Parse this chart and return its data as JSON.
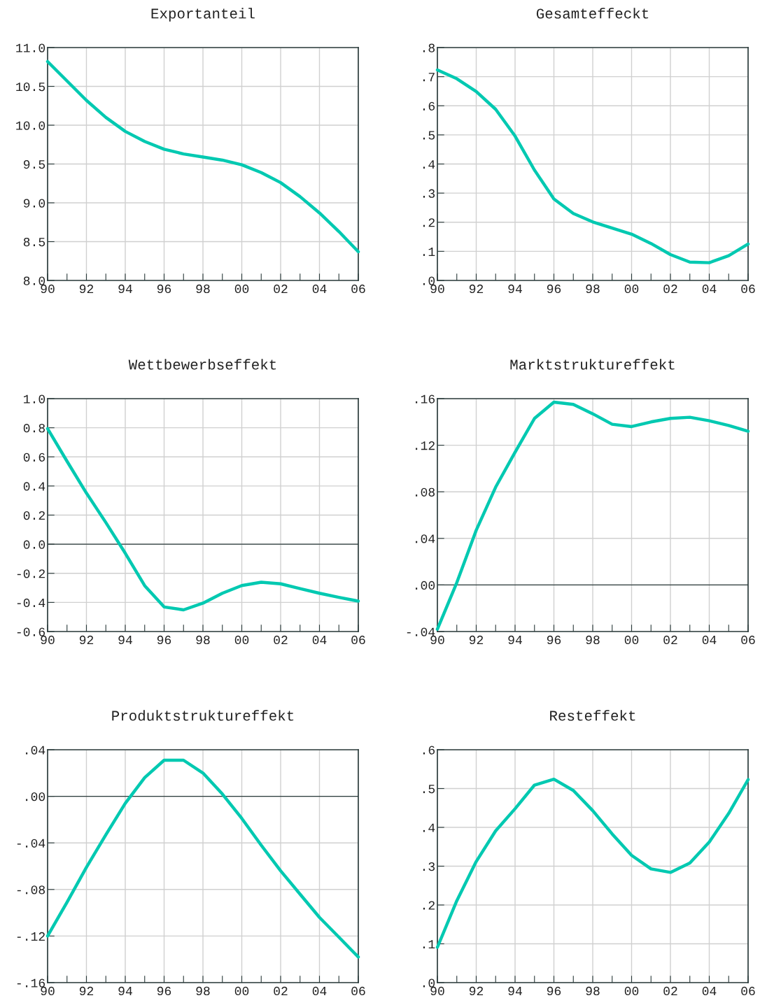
{
  "chart_data": [
    {
      "type": "line",
      "title": "Exportanteil",
      "x": [
        1990,
        1991,
        1992,
        1993,
        1994,
        1995,
        1996,
        1997,
        1998,
        1999,
        2000,
        2001,
        2002,
        2003,
        2004,
        2005,
        2006
      ],
      "series": [
        {
          "color": "#00c9b1",
          "values": [
            10.82,
            10.57,
            10.32,
            10.1,
            9.92,
            9.79,
            9.69,
            9.63,
            9.59,
            9.55,
            9.49,
            9.39,
            9.26,
            9.08,
            8.87,
            8.63,
            8.37
          ]
        }
      ],
      "xlim": [
        1990,
        2006
      ],
      "xticks": [
        {
          "value": 1990,
          "label": "90"
        },
        {
          "value": 1991,
          "label": null
        },
        {
          "value": 1992,
          "label": "92"
        },
        {
          "value": 1993,
          "label": null
        },
        {
          "value": 1994,
          "label": "94"
        },
        {
          "value": 1995,
          "label": null
        },
        {
          "value": 1996,
          "label": "96"
        },
        {
          "value": 1997,
          "label": null
        },
        {
          "value": 1998,
          "label": "98"
        },
        {
          "value": 1999,
          "label": null
        },
        {
          "value": 2000,
          "label": "00"
        },
        {
          "value": 2001,
          "label": null
        },
        {
          "value": 2002,
          "label": "02"
        },
        {
          "value": 2003,
          "label": null
        },
        {
          "value": 2004,
          "label": "04"
        },
        {
          "value": 2005,
          "label": null
        },
        {
          "value": 2006,
          "label": "06"
        }
      ],
      "ylim": [
        8.0,
        11.0
      ],
      "yticks": [
        {
          "value": 8.0,
          "label": "8.0"
        },
        {
          "value": 8.5,
          "label": "8.5"
        },
        {
          "value": 9.0,
          "label": "9.0"
        },
        {
          "value": 9.5,
          "label": "9.5"
        },
        {
          "value": 10.0,
          "label": "10.0"
        },
        {
          "value": 10.5,
          "label": "10.5"
        },
        {
          "value": 11.0,
          "label": "11.0"
        }
      ],
      "grid": true
    },
    {
      "type": "line",
      "title": "Gesamteffeckt",
      "x": [
        1990,
        1991,
        1992,
        1993,
        1994,
        1995,
        1996,
        1997,
        1998,
        1999,
        2000,
        2001,
        2002,
        2003,
        2004,
        2005,
        2006
      ],
      "series": [
        {
          "color": "#00c9b1",
          "values": [
            0.723,
            0.693,
            0.649,
            0.588,
            0.496,
            0.379,
            0.28,
            0.23,
            0.201,
            0.18,
            0.159,
            0.127,
            0.089,
            0.063,
            0.061,
            0.085,
            0.125
          ]
        }
      ],
      "xlim": [
        1990,
        2006
      ],
      "xticks": [
        {
          "value": 1990,
          "label": "90"
        },
        {
          "value": 1991,
          "label": null
        },
        {
          "value": 1992,
          "label": "92"
        },
        {
          "value": 1993,
          "label": null
        },
        {
          "value": 1994,
          "label": "94"
        },
        {
          "value": 1995,
          "label": null
        },
        {
          "value": 1996,
          "label": "96"
        },
        {
          "value": 1997,
          "label": null
        },
        {
          "value": 1998,
          "label": "98"
        },
        {
          "value": 1999,
          "label": null
        },
        {
          "value": 2000,
          "label": "00"
        },
        {
          "value": 2001,
          "label": null
        },
        {
          "value": 2002,
          "label": "02"
        },
        {
          "value": 2003,
          "label": null
        },
        {
          "value": 2004,
          "label": "04"
        },
        {
          "value": 2005,
          "label": null
        },
        {
          "value": 2006,
          "label": "06"
        }
      ],
      "ylim": [
        0,
        0.8
      ],
      "yticks": [
        {
          "value": 0,
          "label": ".0"
        },
        {
          "value": 0.1,
          "label": ".1"
        },
        {
          "value": 0.2,
          "label": ".2"
        },
        {
          "value": 0.3,
          "label": ".3"
        },
        {
          "value": 0.4,
          "label": ".4"
        },
        {
          "value": 0.5,
          "label": ".5"
        },
        {
          "value": 0.6,
          "label": ".6"
        },
        {
          "value": 0.7,
          "label": ".7"
        },
        {
          "value": 0.8,
          "label": ".8"
        }
      ],
      "grid": true
    },
    {
      "type": "line",
      "title": "Wettbewerbseffekt",
      "x": [
        1990,
        1991,
        1992,
        1993,
        1994,
        1995,
        1996,
        1997,
        1998,
        1999,
        2000,
        2001,
        2002,
        2003,
        2004,
        2005,
        2006
      ],
      "series": [
        {
          "color": "#00c9b1",
          "values": [
            0.794,
            0.57,
            0.351,
            0.149,
            -0.062,
            -0.285,
            -0.431,
            -0.451,
            -0.405,
            -0.337,
            -0.284,
            -0.261,
            -0.272,
            -0.305,
            -0.337,
            -0.365,
            -0.391
          ]
        }
      ],
      "xlim": [
        1990,
        2006
      ],
      "xticks": [
        {
          "value": 1990,
          "label": "90"
        },
        {
          "value": 1991,
          "label": null
        },
        {
          "value": 1992,
          "label": "92"
        },
        {
          "value": 1993,
          "label": null
        },
        {
          "value": 1994,
          "label": "94"
        },
        {
          "value": 1995,
          "label": null
        },
        {
          "value": 1996,
          "label": "96"
        },
        {
          "value": 1997,
          "label": null
        },
        {
          "value": 1998,
          "label": "98"
        },
        {
          "value": 1999,
          "label": null
        },
        {
          "value": 2000,
          "label": "00"
        },
        {
          "value": 2001,
          "label": null
        },
        {
          "value": 2002,
          "label": "02"
        },
        {
          "value": 2003,
          "label": null
        },
        {
          "value": 2004,
          "label": "04"
        },
        {
          "value": 2005,
          "label": null
        },
        {
          "value": 2006,
          "label": "06"
        }
      ],
      "ylim": [
        -0.6,
        1.0
      ],
      "yticks": [
        {
          "value": -0.6,
          "label": "-0.6"
        },
        {
          "value": -0.4,
          "label": "-0.4"
        },
        {
          "value": -0.2,
          "label": "-0.2"
        },
        {
          "value": 0,
          "label": "0.0"
        },
        {
          "value": 0.2,
          "label": "0.2"
        },
        {
          "value": 0.4,
          "label": "0.4"
        },
        {
          "value": 0.6,
          "label": "0.6"
        },
        {
          "value": 0.8,
          "label": "0.8"
        },
        {
          "value": 1.0,
          "label": "1.0"
        }
      ],
      "grid": true,
      "ref_lines": [
        {
          "axis": "y",
          "value": 0,
          "color": "#2b3b3b"
        }
      ]
    },
    {
      "type": "line",
      "title": "Marktstruktureffekt",
      "x": [
        1990,
        1991,
        1992,
        1993,
        1994,
        1995,
        1996,
        1997,
        1998,
        1999,
        2000,
        2001,
        2002,
        2003,
        2004,
        2005,
        2006
      ],
      "series": [
        {
          "color": "#00c9b1",
          "values": [
            -0.038,
            0.002,
            0.047,
            0.084,
            0.114,
            0.143,
            0.157,
            0.155,
            0.147,
            0.138,
            0.136,
            0.14,
            0.143,
            0.144,
            0.141,
            0.137,
            0.132
          ]
        }
      ],
      "xlim": [
        1990,
        2006
      ],
      "xticks": [
        {
          "value": 1990,
          "label": "90"
        },
        {
          "value": 1991,
          "label": null
        },
        {
          "value": 1992,
          "label": "92"
        },
        {
          "value": 1993,
          "label": null
        },
        {
          "value": 1994,
          "label": "94"
        },
        {
          "value": 1995,
          "label": null
        },
        {
          "value": 1996,
          "label": "96"
        },
        {
          "value": 1997,
          "label": null
        },
        {
          "value": 1998,
          "label": "98"
        },
        {
          "value": 1999,
          "label": null
        },
        {
          "value": 2000,
          "label": "00"
        },
        {
          "value": 2001,
          "label": null
        },
        {
          "value": 2002,
          "label": "02"
        },
        {
          "value": 2003,
          "label": null
        },
        {
          "value": 2004,
          "label": "04"
        },
        {
          "value": 2005,
          "label": null
        },
        {
          "value": 2006,
          "label": "06"
        }
      ],
      "ylim": [
        -0.04,
        0.16
      ],
      "yticks": [
        {
          "value": -0.04,
          "label": "-.04"
        },
        {
          "value": 0,
          "label": ".00"
        },
        {
          "value": 0.04,
          "label": ".04"
        },
        {
          "value": 0.08,
          "label": ".08"
        },
        {
          "value": 0.12,
          "label": ".12"
        },
        {
          "value": 0.16,
          "label": ".16"
        }
      ],
      "grid": true,
      "ref_lines": [
        {
          "axis": "y",
          "value": 0,
          "color": "#2b3b3b"
        }
      ]
    },
    {
      "type": "line",
      "title": "Produktstruktureffekt",
      "x": [
        1990,
        1991,
        1992,
        1993,
        1994,
        1995,
        1996,
        1997,
        1998,
        1999,
        2000,
        2001,
        2002,
        2003,
        2004,
        2005,
        2006
      ],
      "series": [
        {
          "color": "#00c9b1",
          "values": [
            -0.12,
            -0.091,
            -0.061,
            -0.033,
            -0.006,
            0.016,
            0.031,
            0.031,
            0.02,
            0.002,
            -0.019,
            -0.042,
            -0.064,
            -0.084,
            -0.104,
            -0.121,
            -0.138
          ]
        }
      ],
      "xlim": [
        1990,
        2006
      ],
      "xticks": [
        {
          "value": 1990,
          "label": "90"
        },
        {
          "value": 1991,
          "label": null
        },
        {
          "value": 1992,
          "label": "92"
        },
        {
          "value": 1993,
          "label": null
        },
        {
          "value": 1994,
          "label": "94"
        },
        {
          "value": 1995,
          "label": null
        },
        {
          "value": 1996,
          "label": "96"
        },
        {
          "value": 1997,
          "label": null
        },
        {
          "value": 1998,
          "label": "98"
        },
        {
          "value": 1999,
          "label": null
        },
        {
          "value": 2000,
          "label": "00"
        },
        {
          "value": 2001,
          "label": null
        },
        {
          "value": 2002,
          "label": "02"
        },
        {
          "value": 2003,
          "label": null
        },
        {
          "value": 2004,
          "label": "04"
        },
        {
          "value": 2005,
          "label": null
        },
        {
          "value": 2006,
          "label": "06"
        }
      ],
      "ylim": [
        -0.16,
        0.04
      ],
      "yticks": [
        {
          "value": -0.16,
          "label": "-.16"
        },
        {
          "value": -0.12,
          "label": "-.12"
        },
        {
          "value": -0.08,
          "label": "-.08"
        },
        {
          "value": -0.04,
          "label": "-.04"
        },
        {
          "value": 0,
          "label": ".00"
        },
        {
          "value": 0.04,
          "label": ".04"
        }
      ],
      "grid": true,
      "ref_lines": [
        {
          "axis": "y",
          "value": 0,
          "color": "#2b3b3b"
        }
      ]
    },
    {
      "type": "line",
      "title": "Resteffekt",
      "x": [
        1990,
        1991,
        1992,
        1993,
        1994,
        1995,
        1996,
        1997,
        1998,
        1999,
        2000,
        2001,
        2002,
        2003,
        2004,
        2005,
        2006
      ],
      "series": [
        {
          "color": "#00c9b1",
          "values": [
            0.091,
            0.211,
            0.312,
            0.391,
            0.448,
            0.509,
            0.524,
            0.495,
            0.443,
            0.383,
            0.328,
            0.293,
            0.284,
            0.308,
            0.362,
            0.436,
            0.523
          ]
        }
      ],
      "xlim": [
        1990,
        2006
      ],
      "xticks": [
        {
          "value": 1990,
          "label": "90"
        },
        {
          "value": 1991,
          "label": null
        },
        {
          "value": 1992,
          "label": "92"
        },
        {
          "value": 1993,
          "label": null
        },
        {
          "value": 1994,
          "label": "94"
        },
        {
          "value": 1995,
          "label": null
        },
        {
          "value": 1996,
          "label": "96"
        },
        {
          "value": 1997,
          "label": null
        },
        {
          "value": 1998,
          "label": "98"
        },
        {
          "value": 1999,
          "label": null
        },
        {
          "value": 2000,
          "label": "00"
        },
        {
          "value": 2001,
          "label": null
        },
        {
          "value": 2002,
          "label": "02"
        },
        {
          "value": 2003,
          "label": null
        },
        {
          "value": 2004,
          "label": "04"
        },
        {
          "value": 2005,
          "label": null
        },
        {
          "value": 2006,
          "label": "06"
        }
      ],
      "ylim": [
        0,
        0.6
      ],
      "yticks": [
        {
          "value": 0,
          "label": ".0"
        },
        {
          "value": 0.1,
          "label": ".1"
        },
        {
          "value": 0.2,
          "label": ".2"
        },
        {
          "value": 0.3,
          "label": ".3"
        },
        {
          "value": 0.4,
          "label": ".4"
        },
        {
          "value": 0.5,
          "label": ".5"
        },
        {
          "value": 0.6,
          "label": ".6"
        }
      ],
      "grid": true
    }
  ]
}
